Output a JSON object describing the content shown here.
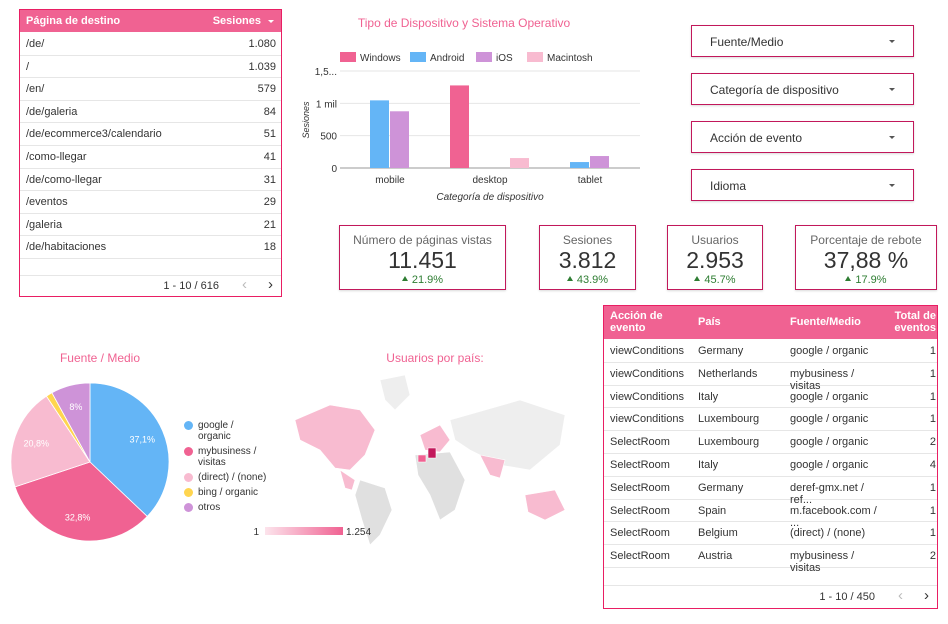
{
  "landing_table": {
    "headers": [
      "Página de destino",
      "Sesiones"
    ],
    "rows": [
      [
        "/de/",
        "1.080"
      ],
      [
        "/",
        "1.039"
      ],
      [
        "/en/",
        "579"
      ],
      [
        "/de/galeria",
        "84"
      ],
      [
        "/de/ecommerce3/calendario",
        "51"
      ],
      [
        "/como-llegar",
        "41"
      ],
      [
        "/de/como-llegar",
        "31"
      ],
      [
        "/eventos",
        "29"
      ],
      [
        "/galeria",
        "21"
      ],
      [
        "/de/habitaciones",
        "18"
      ]
    ],
    "pagination": "1 - 10 / 616"
  },
  "filters": [
    "Fuente/Medio",
    "Categoría de dispositivo",
    "Acción de evento",
    "Idioma"
  ],
  "scorecards": [
    {
      "label": "Número de páginas vistas",
      "value": "11.451",
      "change": "21.9%"
    },
    {
      "label": "Sesiones",
      "value": "3.812",
      "change": "43.9%"
    },
    {
      "label": "Usuarios",
      "value": "2.953",
      "change": "45.7%"
    },
    {
      "label": "Porcentaje de rebote",
      "value": "37,88 %",
      "change": "17.9%"
    }
  ],
  "events_table": {
    "headers": [
      "Acción de evento",
      "País",
      "Fuente/Medio",
      "Total de eventos"
    ],
    "rows": [
      [
        "viewConditions",
        "Germany",
        "google / organic",
        "1"
      ],
      [
        "viewConditions",
        "Netherlands",
        "mybusiness / visitas",
        "1"
      ],
      [
        "viewConditions",
        "Italy",
        "google / organic",
        "1"
      ],
      [
        "viewConditions",
        "Luxembourg",
        "google / organic",
        "1"
      ],
      [
        "SelectRoom",
        "Luxembourg",
        "google / organic",
        "2"
      ],
      [
        "SelectRoom",
        "Italy",
        "google / organic",
        "4"
      ],
      [
        "SelectRoom",
        "Germany",
        "deref-gmx.net / ref...",
        "1"
      ],
      [
        "SelectRoom",
        "Spain",
        "m.facebook.com / ...",
        "1"
      ],
      [
        "SelectRoom",
        "Belgium",
        "(direct) / (none)",
        "1"
      ],
      [
        "SelectRoom",
        "Austria",
        "mybusiness / visitas",
        "2"
      ]
    ],
    "pagination": "1 - 10 / 450"
  },
  "map": {
    "title": "Usuarios por país:",
    "colorbar_ticks": [
      1,
      {
        "value": 1254,
        "label": "1.254"
      }
    ]
  },
  "chart_data": [
    {
      "type": "bar",
      "title": "Tipo de Dispositivo y Sistema Operativo",
      "x_label": "Categoría de dispositivo",
      "y_label": "Sesiones",
      "categories": [
        "mobile",
        "desktop",
        "tablet"
      ],
      "series": [
        {
          "name": "Windows",
          "color": "#f06292",
          "values": [
            null,
            1277,
            null
          ]
        },
        {
          "name": "Android",
          "color": "#64b5f6",
          "values": [
            1046,
            null,
            92
          ]
        },
        {
          "name": "iOS",
          "color": "#ce93d8",
          "values": [
            877,
            null,
            185
          ]
        },
        {
          "name": "Macintosh",
          "color": "#f8bbd0",
          "values": [
            null,
            154,
            null
          ]
        }
      ],
      "ylim": [
        0,
        1500
      ],
      "yticks": [
        0,
        500,
        {
          "value": 1000,
          "label": "1 mil"
        },
        {
          "value": 1500,
          "label": "1,5..."
        }
      ],
      "grid": true
    },
    {
      "type": "pie",
      "title": "Fuente / Medio",
      "categories": [
        "google / organic",
        "mybusiness / visitas",
        "(direct) / (none)",
        "bing / organic",
        "otros"
      ],
      "values": [
        37.1,
        32.8,
        20.8,
        1.3,
        8
      ],
      "value_labels": [
        "37,1%",
        "32,8%",
        "20,8%",
        null,
        "8%"
      ],
      "colors": [
        "#64b5f6",
        "#f06292",
        "#f8bbd0",
        "#ffd54f",
        "#ce93d8"
      ]
    }
  ]
}
